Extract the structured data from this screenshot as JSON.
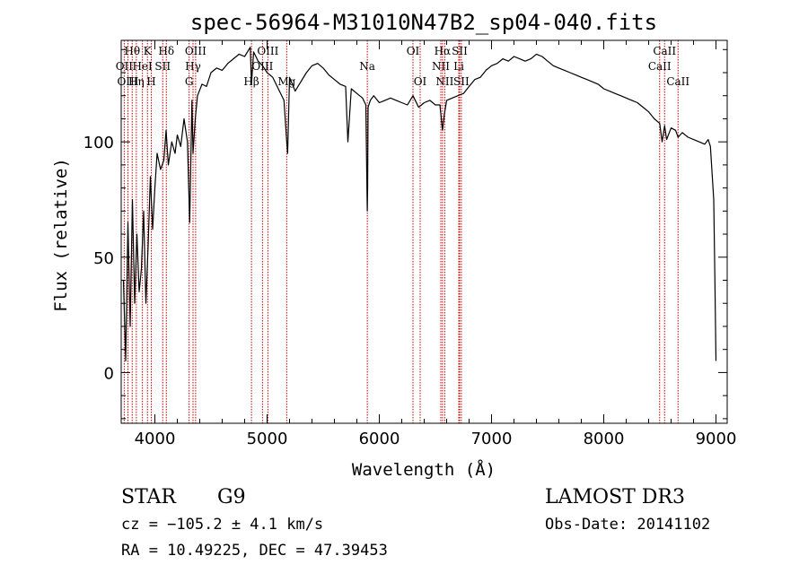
{
  "chart_data": {
    "type": "line",
    "title": "spec-56964-M31010N47B2_sp04-040.fits",
    "xlabel": "Wavelength (Å)",
    "ylabel": "Flux (relative)",
    "xlim": [
      3700,
      9100
    ],
    "ylim": [
      -22,
      144
    ],
    "xticks": [
      4000,
      5000,
      6000,
      7000,
      8000,
      9000
    ],
    "yticks": [
      0,
      50,
      100
    ],
    "series": [
      {
        "name": "flux",
        "x": [
          3720,
          3740,
          3760,
          3780,
          3800,
          3820,
          3840,
          3860,
          3880,
          3900,
          3920,
          3940,
          3960,
          3980,
          4000,
          4020,
          4050,
          4080,
          4100,
          4120,
          4150,
          4180,
          4200,
          4230,
          4260,
          4290,
          4310,
          4330,
          4340,
          4360,
          4380,
          4420,
          4460,
          4500,
          4550,
          4600,
          4650,
          4700,
          4750,
          4800,
          4850,
          4861,
          4880,
          4920,
          4960,
          5000,
          5050,
          5100,
          5150,
          5175,
          5183,
          5200,
          5250,
          5300,
          5350,
          5400,
          5450,
          5500,
          5550,
          5600,
          5650,
          5700,
          5720,
          5750,
          5800,
          5850,
          5880,
          5890,
          5893,
          5896,
          5900,
          5920,
          5950,
          6000,
          6050,
          6100,
          6150,
          6200,
          6250,
          6300,
          6350,
          6400,
          6450,
          6500,
          6540,
          6563,
          6580,
          6600,
          6650,
          6700,
          6750,
          6800,
          6850,
          6900,
          6950,
          7000,
          7050,
          7100,
          7150,
          7200,
          7250,
          7300,
          7350,
          7400,
          7450,
          7500,
          7550,
          7600,
          7650,
          7700,
          7750,
          7800,
          7850,
          7900,
          7950,
          8000,
          8050,
          8100,
          8150,
          8200,
          8250,
          8300,
          8350,
          8400,
          8450,
          8498,
          8520,
          8542,
          8560,
          8600,
          8640,
          8662,
          8680,
          8700,
          8750,
          8800,
          8850,
          8900,
          8930,
          8950,
          8980,
          8990,
          9000
        ],
        "y": [
          40,
          5,
          65,
          20,
          75,
          30,
          60,
          35,
          45,
          70,
          30,
          55,
          85,
          62,
          80,
          95,
          88,
          92,
          105,
          90,
          100,
          95,
          103,
          98,
          110,
          100,
          65,
          118,
          95,
          110,
          120,
          125,
          124,
          130,
          132,
          131,
          134,
          136,
          138,
          137,
          141,
          125,
          139,
          135,
          133,
          130,
          128,
          123,
          118,
          100,
          95,
          128,
          122,
          126,
          130,
          133,
          134,
          132,
          129,
          127,
          125,
          124,
          100,
          123,
          121,
          119,
          116,
          78,
          70,
          80,
          115,
          118,
          120,
          117,
          118,
          119,
          118,
          117,
          116,
          120,
          115,
          117,
          118,
          116,
          116,
          105,
          112,
          118,
          119,
          120,
          121,
          124,
          127,
          128,
          131,
          133,
          134,
          136,
          135,
          137,
          136,
          135,
          136,
          138,
          137,
          135,
          133,
          132,
          131,
          130,
          129,
          128,
          127,
          126,
          125,
          123,
          122,
          121,
          120,
          119,
          118,
          117,
          115,
          113,
          110,
          108,
          100,
          107,
          101,
          106,
          105,
          102,
          103,
          104,
          102,
          101,
          100,
          99,
          101,
          98,
          75,
          40,
          5
        ]
      }
    ],
    "spectral_lines": [
      {
        "label": "Hθ",
        "x": 3798,
        "row": 1
      },
      {
        "label": "K",
        "x": 3934,
        "row": 1
      },
      {
        "label": "Hδ",
        "x": 4102,
        "row": 1
      },
      {
        "label": "OII",
        "x": 3727,
        "row": 2
      },
      {
        "label": "HeI",
        "x": 3889,
        "row": 2
      },
      {
        "label": "SII",
        "x": 4070,
        "row": 2
      },
      {
        "label": "OIII",
        "x": 3760,
        "row": 3
      },
      {
        "label": "Hη",
        "x": 3835,
        "row": 3
      },
      {
        "label": "H",
        "x": 3968,
        "row": 3
      },
      {
        "label": "OIII",
        "x": 4363,
        "row": 1
      },
      {
        "label": "Hγ",
        "x": 4340,
        "row": 2
      },
      {
        "label": "G",
        "x": 4305,
        "row": 3
      },
      {
        "label": "OIII",
        "x": 5007,
        "row": 1
      },
      {
        "label": "OIII",
        "x": 4959,
        "row": 2
      },
      {
        "label": "Hβ",
        "x": 4861,
        "row": 3
      },
      {
        "label": "Mg",
        "x": 5175,
        "row": 3
      },
      {
        "label": "Na",
        "x": 5893,
        "row": 2
      },
      {
        "label": "OI",
        "x": 6300,
        "row": 1
      },
      {
        "label": "OI",
        "x": 6364,
        "row": 3
      },
      {
        "label": "Hα",
        "x": 6563,
        "row": 1
      },
      {
        "label": "SII",
        "x": 6716,
        "row": 1
      },
      {
        "label": "NII",
        "x": 6548,
        "row": 2
      },
      {
        "label": "Li",
        "x": 6708,
        "row": 2
      },
      {
        "label": "NII",
        "x": 6583,
        "row": 3
      },
      {
        "label": "SII",
        "x": 6731,
        "row": 3
      },
      {
        "label": "CaII",
        "x": 8542,
        "row": 1
      },
      {
        "label": "CaII",
        "x": 8498,
        "row": 2
      },
      {
        "label": "CaII",
        "x": 8662,
        "row": 3
      }
    ]
  },
  "info": {
    "class": "STAR",
    "subclass": "G9",
    "survey": "LAMOST DR3",
    "cz": "cz = −105.2 ± 4.1 km/s",
    "obs_date": "Obs-Date: 20141102",
    "radec": "RA =  10.49225, DEC =  47.39453"
  },
  "colors": {
    "line": "#000000",
    "marker": "#cc0000"
  }
}
